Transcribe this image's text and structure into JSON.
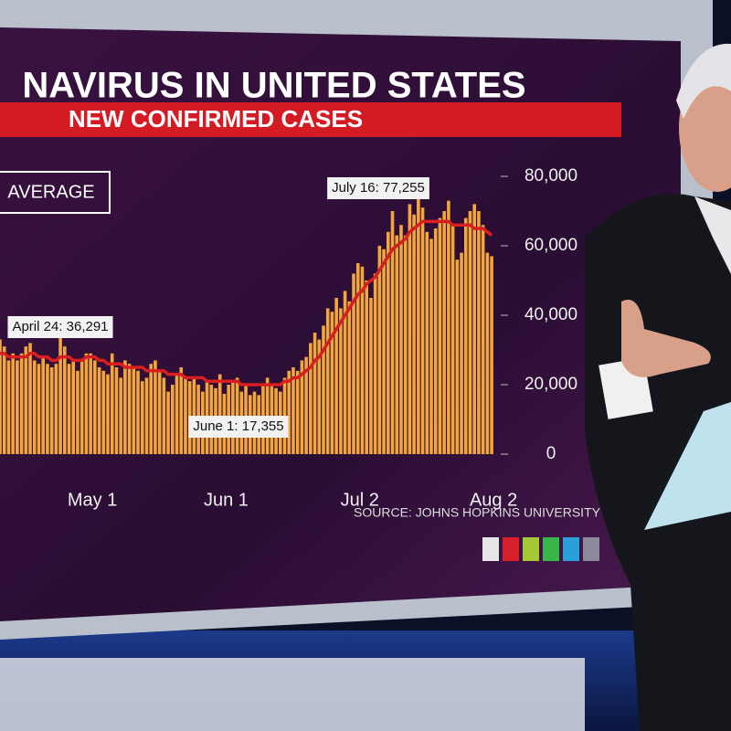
{
  "chart_data": {
    "type": "bar",
    "title": "NAVIRUS IN UNITED STATES",
    "subtitle": "NEW CONFIRMED CASES",
    "source": "SOURCE: JOHNS HOPKINS UNIVERSITY",
    "categories": [
      null,
      null,
      null,
      null,
      null,
      null,
      null,
      null,
      null,
      null,
      null,
      null,
      null,
      null,
      null,
      null,
      null,
      null,
      null,
      null,
      null,
      "May 1",
      null,
      null,
      null,
      null,
      null,
      null,
      null,
      null,
      null,
      null,
      null,
      null,
      null,
      null,
      null,
      null,
      null,
      null,
      null,
      null,
      null,
      null,
      null,
      null,
      null,
      null,
      null,
      null,
      null,
      null,
      "Jun 1",
      null,
      null,
      null,
      null,
      null,
      null,
      null,
      null,
      null,
      null,
      null,
      null,
      null,
      null,
      null,
      null,
      null,
      null,
      null,
      null,
      null,
      null,
      null,
      null,
      null,
      null,
      null,
      null,
      null,
      null,
      "Jul 2",
      null,
      null,
      null,
      null,
      null,
      null,
      null,
      null,
      null,
      null,
      null,
      null,
      null,
      null,
      null,
      null,
      null,
      null,
      null,
      null,
      null,
      null,
      null,
      null,
      null,
      null,
      null,
      null,
      null,
      null,
      "Aug 2"
    ],
    "series": [
      {
        "color": "#f2a63c",
        "values": [
          33000,
          31000,
          27000,
          29000,
          27000,
          29000,
          31000,
          32000,
          27000,
          26000,
          28000,
          26000,
          25000,
          26000,
          36291,
          31000,
          26000,
          27000,
          24000,
          27000,
          29000,
          29000,
          27000,
          25000,
          24000,
          23000,
          29000,
          25000,
          22000,
          27000,
          26000,
          25000,
          24000,
          21000,
          22000,
          26000,
          27000,
          24000,
          22000,
          18000,
          20000,
          23000,
          25000,
          22000,
          21000,
          22000,
          20000,
          18000,
          21000,
          20000,
          19000,
          23000,
          17355,
          20000,
          21000,
          22000,
          18000,
          20000,
          17000,
          18000,
          17000,
          20000,
          22000,
          20000,
          19000,
          18000,
          22000,
          24000,
          25000,
          24000,
          27000,
          28000,
          32000,
          35000,
          33000,
          37000,
          42000,
          41000,
          45000,
          42000,
          47000,
          44000,
          52000,
          55000,
          54000,
          50000,
          45000,
          52000,
          60000,
          59000,
          64000,
          70000,
          63000,
          66000,
          63000,
          72000,
          69000,
          77255,
          71000,
          64000,
          62000,
          65000,
          68000,
          70000,
          73000,
          66000,
          56000,
          58000,
          68000,
          70000,
          72000,
          70000,
          66000,
          58000,
          57000
        ]
      },
      {
        "name": "AVERAGE",
        "type": "line",
        "color": "#d81e1e",
        "values": [
          29000,
          29000,
          28000,
          28000,
          28000,
          28000,
          28000,
          29000,
          29000,
          28000,
          28000,
          28000,
          27000,
          27000,
          28000,
          28000,
          28000,
          27000,
          27000,
          27000,
          28000,
          28000,
          28000,
          27000,
          27000,
          26000,
          26000,
          26000,
          26000,
          25000,
          25000,
          25000,
          25000,
          25000,
          24000,
          24000,
          24000,
          24000,
          24000,
          23000,
          23000,
          23000,
          23000,
          22000,
          22000,
          22000,
          22000,
          22000,
          21000,
          21000,
          21000,
          21000,
          21000,
          21000,
          21000,
          21000,
          20000,
          20000,
          20000,
          20000,
          20000,
          20000,
          20000,
          20000,
          20000,
          20000,
          21000,
          21000,
          22000,
          22000,
          23000,
          24000,
          25000,
          27000,
          28000,
          30000,
          32000,
          34000,
          36000,
          38000,
          40000,
          42000,
          44000,
          46000,
          47000,
          49000,
          50000,
          51000,
          53000,
          55000,
          57000,
          59000,
          60000,
          61000,
          62000,
          64000,
          65000,
          66000,
          67000,
          67000,
          67000,
          67000,
          67000,
          67000,
          67000,
          66000,
          66000,
          66000,
          66000,
          66000,
          65000,
          65000,
          65000,
          64000,
          63000
        ]
      }
    ],
    "ylim": [
      0,
      80000
    ],
    "yticks": [
      0,
      {
        "value": 20000,
        "label": "20,000"
      },
      {
        "value": 40000,
        "label": "40,000"
      },
      {
        "value": 60000,
        "label": "60,000"
      },
      {
        "value": 80000,
        "label": "80,000"
      }
    ],
    "annotations": [
      "April 24: 36,291",
      "June 1: 17,355",
      "July 16: 77,255"
    ]
  }
}
